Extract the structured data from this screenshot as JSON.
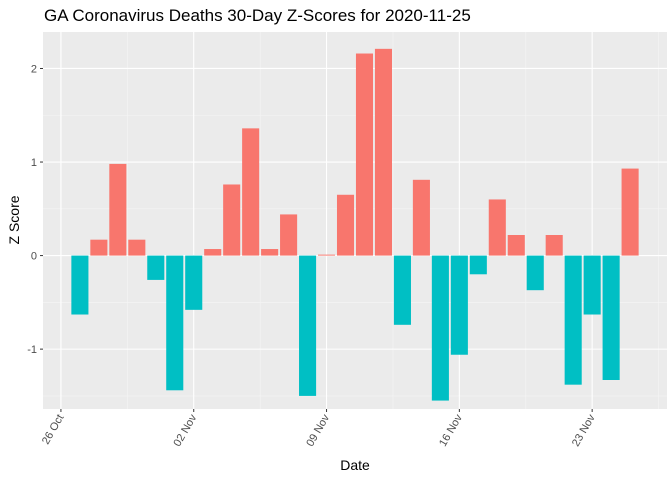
{
  "chart_data": {
    "type": "bar",
    "title": "GA Coronavirus Deaths 30-Day Z-Scores for 2020-11-25",
    "xlabel": "Date",
    "ylabel": "Z Score",
    "dates": [
      "2020-10-27",
      "2020-10-28",
      "2020-10-29",
      "2020-10-30",
      "2020-10-31",
      "2020-11-01",
      "2020-11-02",
      "2020-11-03",
      "2020-11-04",
      "2020-11-05",
      "2020-11-06",
      "2020-11-07",
      "2020-11-08",
      "2020-11-09",
      "2020-11-10",
      "2020-11-11",
      "2020-11-12",
      "2020-11-13",
      "2020-11-14",
      "2020-11-15",
      "2020-11-16",
      "2020-11-17",
      "2020-11-18",
      "2020-11-19",
      "2020-11-20",
      "2020-11-21",
      "2020-11-22",
      "2020-11-23",
      "2020-11-24",
      "2020-11-25"
    ],
    "values": [
      -0.63,
      0.17,
      0.98,
      0.17,
      -0.26,
      -1.44,
      -0.58,
      0.07,
      0.76,
      1.36,
      0.07,
      0.44,
      -1.5,
      0.01,
      0.65,
      2.16,
      2.21,
      -0.74,
      0.81,
      -1.55,
      -1.06,
      -0.2,
      0.6,
      0.22,
      -0.37,
      0.22,
      -1.38,
      -0.63,
      -1.33,
      0.93
    ],
    "x_ticks": [
      "26 Oct",
      "02 Nov",
      "09 Nov",
      "16 Nov",
      "23 Nov"
    ],
    "y_ticks": [
      -1,
      0,
      1,
      2
    ],
    "ylim": [
      -1.64,
      2.39
    ],
    "colors": {
      "positive": "#F8766D",
      "negative": "#00BFC4",
      "panel": "#EBEBEB",
      "grid_major": "#FFFFFF",
      "grid_minor": "#F5F5F5"
    },
    "legend": "none"
  }
}
